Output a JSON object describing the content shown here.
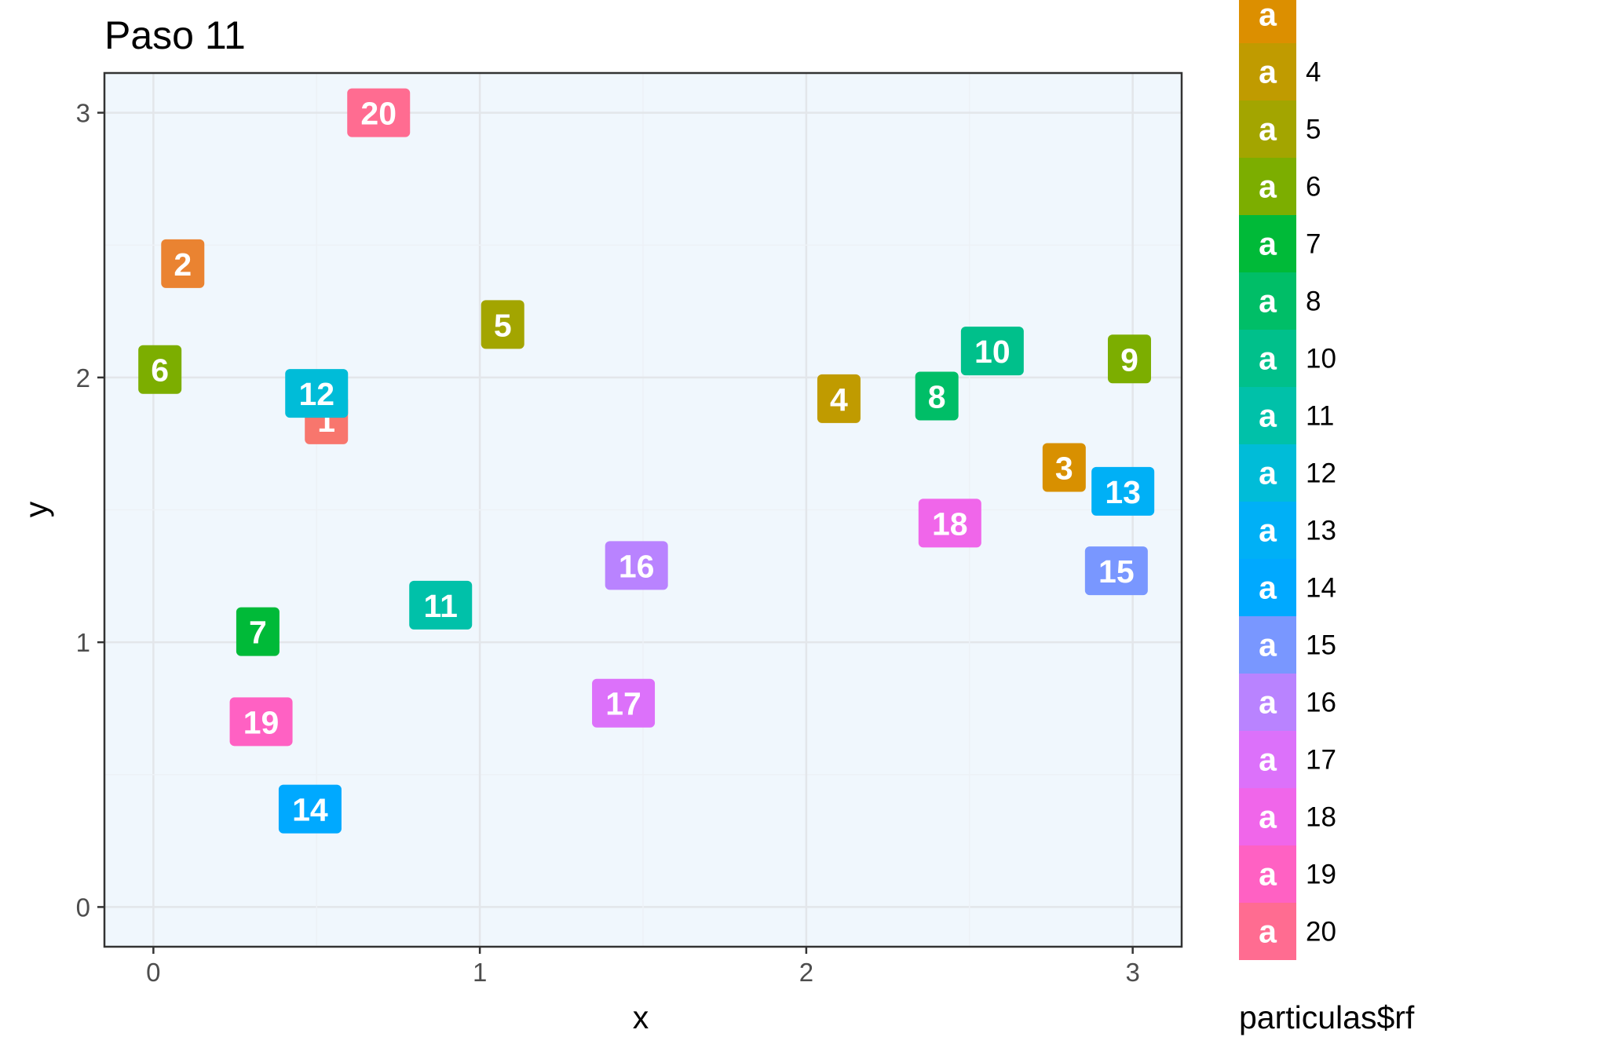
{
  "chart_data": {
    "type": "scatter",
    "title": "Paso 11",
    "xlabel": "x",
    "ylabel": "y",
    "xlim": [
      -0.15,
      3.15
    ],
    "ylim": [
      -0.15,
      3.15
    ],
    "x_ticks": [
      "0",
      "1",
      "2",
      "3"
    ],
    "y_ticks": [
      "0",
      "1",
      "2",
      "3"
    ],
    "grid": true,
    "panel_background": "#f0f7fd",
    "points": [
      {
        "label": "1",
        "x": 0.53,
        "y": 1.84,
        "color": "#F8766D"
      },
      {
        "label": "2",
        "x": 0.09,
        "y": 2.43,
        "color": "#EA8331"
      },
      {
        "label": "3",
        "x": 2.79,
        "y": 1.66,
        "color": "#D89000"
      },
      {
        "label": "4",
        "x": 2.1,
        "y": 1.92,
        "color": "#C09B00"
      },
      {
        "label": "5",
        "x": 1.07,
        "y": 2.2,
        "color": "#A3A500"
      },
      {
        "label": "6",
        "x": 0.02,
        "y": 2.03,
        "color": "#7CAE00"
      },
      {
        "label": "7",
        "x": 0.32,
        "y": 1.04,
        "color": "#00BA38"
      },
      {
        "label": "8",
        "x": 2.4,
        "y": 1.93,
        "color": "#00BE67"
      },
      {
        "label": "9",
        "x": 2.99,
        "y": 2.07,
        "color": "#7CAE00"
      },
      {
        "label": "10",
        "x": 2.57,
        "y": 2.1,
        "color": "#00C08B"
      },
      {
        "label": "11",
        "x": 0.88,
        "y": 1.14,
        "color": "#00C1A9"
      },
      {
        "label": "12",
        "x": 0.5,
        "y": 1.94,
        "color": "#00BCD8"
      },
      {
        "label": "13",
        "x": 2.97,
        "y": 1.57,
        "color": "#00B0F6"
      },
      {
        "label": "14",
        "x": 0.48,
        "y": 0.37,
        "color": "#00A9FF"
      },
      {
        "label": "15",
        "x": 2.95,
        "y": 1.27,
        "color": "#7997FF"
      },
      {
        "label": "16",
        "x": 1.48,
        "y": 1.29,
        "color": "#B983FF"
      },
      {
        "label": "17",
        "x": 1.44,
        "y": 0.77,
        "color": "#DC71FA"
      },
      {
        "label": "18",
        "x": 2.44,
        "y": 1.45,
        "color": "#F066EA"
      },
      {
        "label": "19",
        "x": 0.33,
        "y": 0.7,
        "color": "#FF61C3"
      },
      {
        "label": "20",
        "x": 0.69,
        "y": 3.0,
        "color": "#FF6C91"
      }
    ],
    "legend": {
      "title": "particulas$rf",
      "position": "right",
      "key_glyph": "a",
      "items": [
        {
          "label": "",
          "color": "#DC8F00"
        },
        {
          "label": "4",
          "color": "#C09B00"
        },
        {
          "label": "5",
          "color": "#A3A500"
        },
        {
          "label": "6",
          "color": "#7CAE00"
        },
        {
          "label": "7",
          "color": "#00BA38"
        },
        {
          "label": "8",
          "color": "#00BE67"
        },
        {
          "label": "10",
          "color": "#00C08B"
        },
        {
          "label": "11",
          "color": "#00C1A9"
        },
        {
          "label": "12",
          "color": "#00BCD8"
        },
        {
          "label": "13",
          "color": "#00B0F6"
        },
        {
          "label": "14",
          "color": "#00A9FF"
        },
        {
          "label": "15",
          "color": "#7997FF"
        },
        {
          "label": "16",
          "color": "#B983FF"
        },
        {
          "label": "17",
          "color": "#DC71FA"
        },
        {
          "label": "18",
          "color": "#F066EA"
        },
        {
          "label": "19",
          "color": "#FF61C3"
        },
        {
          "label": "20",
          "color": "#FF6C91"
        }
      ]
    }
  }
}
